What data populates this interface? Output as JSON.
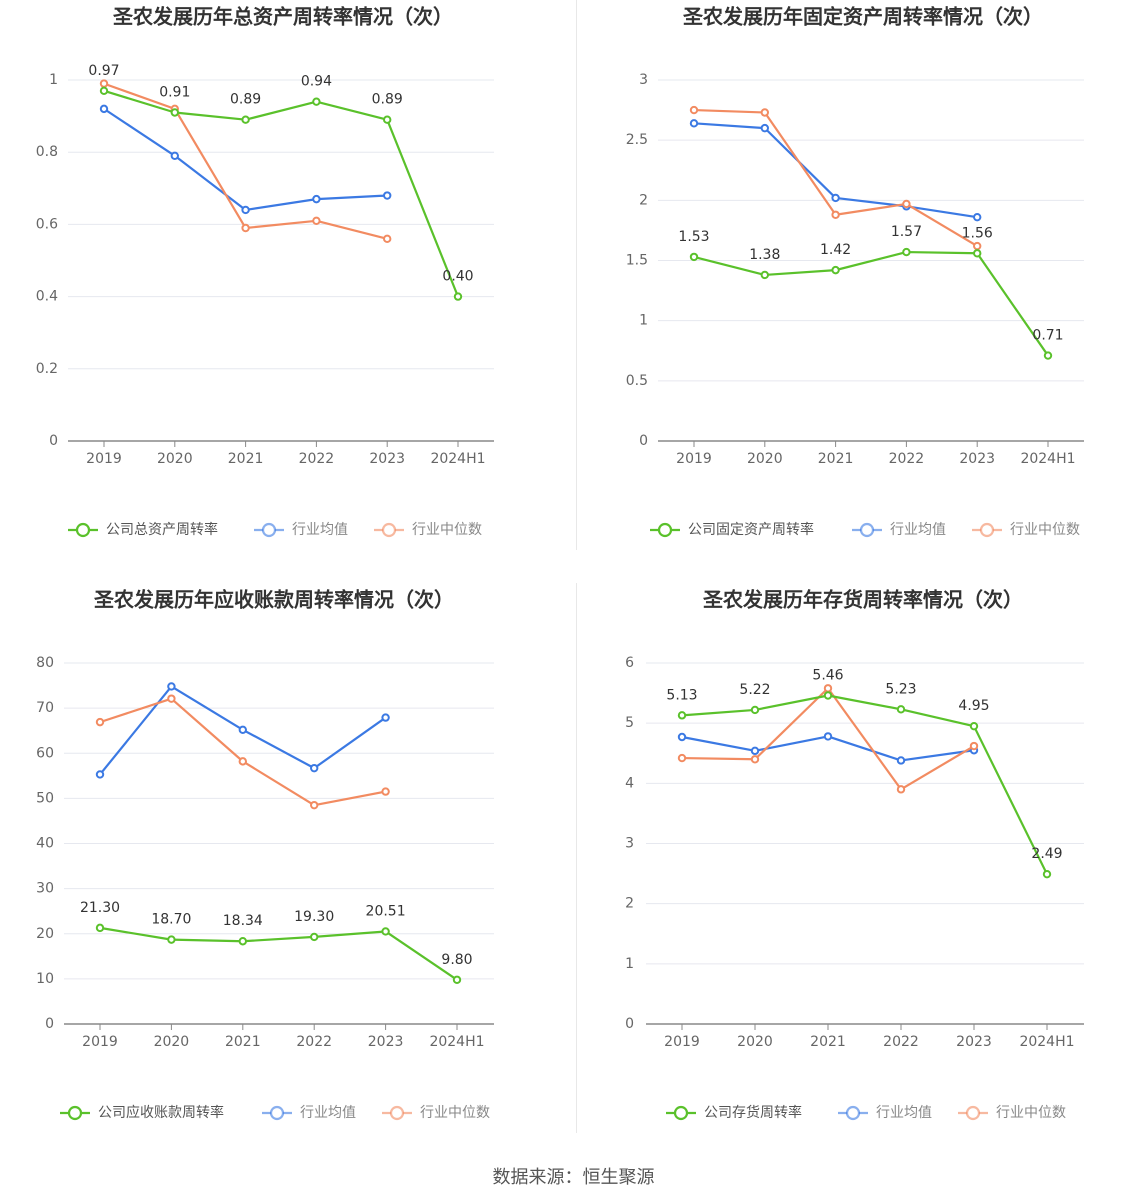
{
  "source_text": "数据来源：恒生聚源",
  "colors": {
    "company": "#5ac12b",
    "avg": "#3b79e3",
    "median": "#f28b61",
    "grid": "#e6e8ef",
    "axis": "#888888"
  },
  "chart_data": [
    {
      "type": "line",
      "title": "圣农发展历年总资产周转率情况（次）",
      "categories": [
        "2019",
        "2020",
        "2021",
        "2022",
        "2023",
        "2024H1"
      ],
      "yticks": [
        "0",
        "0.2",
        "0.4",
        "0.6",
        "0.8",
        "1"
      ],
      "ylim": [
        0,
        1
      ],
      "series": [
        {
          "name": "公司总资产周转率",
          "key": "company",
          "values": [
            0.97,
            0.91,
            0.89,
            0.94,
            0.89,
            0.4
          ],
          "labels": [
            "0.97",
            "0.91",
            "0.89",
            "0.94",
            "0.89",
            "0.40"
          ]
        },
        {
          "name": "行业均值",
          "key": "avg",
          "values": [
            0.92,
            0.79,
            0.64,
            0.67,
            0.68,
            null
          ]
        },
        {
          "name": "行业中位数",
          "key": "median",
          "values": [
            0.99,
            0.92,
            0.59,
            0.61,
            0.56,
            null
          ]
        }
      ]
    },
    {
      "type": "line",
      "title": "圣农发展历年固定资产周转率情况（次）",
      "categories": [
        "2019",
        "2020",
        "2021",
        "2022",
        "2023",
        "2024H1"
      ],
      "yticks": [
        "0",
        "0.5",
        "1",
        "1.5",
        "2",
        "2.5",
        "3"
      ],
      "ylim": [
        0,
        3
      ],
      "series": [
        {
          "name": "公司固定资产周转率",
          "key": "company",
          "values": [
            1.53,
            1.38,
            1.42,
            1.57,
            1.56,
            0.71
          ],
          "labels": [
            "1.53",
            "1.38",
            "1.42",
            "1.57",
            "1.56",
            "0.71"
          ]
        },
        {
          "name": "行业均值",
          "key": "avg",
          "values": [
            2.64,
            2.6,
            2.02,
            1.95,
            1.86,
            null
          ]
        },
        {
          "name": "行业中位数",
          "key": "median",
          "values": [
            2.75,
            2.73,
            1.88,
            1.97,
            1.62,
            null
          ]
        }
      ]
    },
    {
      "type": "line",
      "title": "圣农发展历年应收账款周转率情况（次）",
      "categories": [
        "2019",
        "2020",
        "2021",
        "2022",
        "2023",
        "2024H1"
      ],
      "yticks": [
        "0",
        "10",
        "20",
        "30",
        "40",
        "50",
        "60",
        "70",
        "80"
      ],
      "ylim": [
        0,
        80
      ],
      "series": [
        {
          "name": "公司应收账款周转率",
          "key": "company",
          "values": [
            21.3,
            18.7,
            18.34,
            19.3,
            20.51,
            9.8
          ],
          "labels": [
            "21.30",
            "18.70",
            "18.34",
            "19.30",
            "20.51",
            "9.80"
          ]
        },
        {
          "name": "行业均值",
          "key": "avg",
          "values": [
            55.3,
            74.8,
            65.2,
            56.7,
            67.9,
            null
          ]
        },
        {
          "name": "行业中位数",
          "key": "median",
          "values": [
            66.9,
            72.1,
            58.2,
            48.5,
            51.5,
            null
          ]
        }
      ]
    },
    {
      "type": "line",
      "title": "圣农发展历年存货周转率情况（次）",
      "categories": [
        "2019",
        "2020",
        "2021",
        "2022",
        "2023",
        "2024H1"
      ],
      "yticks": [
        "0",
        "1",
        "2",
        "3",
        "4",
        "5",
        "6"
      ],
      "ylim": [
        0,
        6
      ],
      "series": [
        {
          "name": "公司存货周转率",
          "key": "company",
          "values": [
            5.13,
            5.22,
            5.46,
            5.23,
            4.95,
            2.49
          ],
          "labels": [
            "5.13",
            "5.22",
            "5.46",
            "5.23",
            "4.95",
            "2.49"
          ]
        },
        {
          "name": "行业均值",
          "key": "avg",
          "values": [
            4.77,
            4.54,
            4.78,
            4.38,
            4.55,
            null
          ]
        },
        {
          "name": "行业中位数",
          "key": "median",
          "values": [
            4.42,
            4.4,
            5.58,
            3.9,
            4.62,
            null
          ]
        }
      ]
    }
  ]
}
